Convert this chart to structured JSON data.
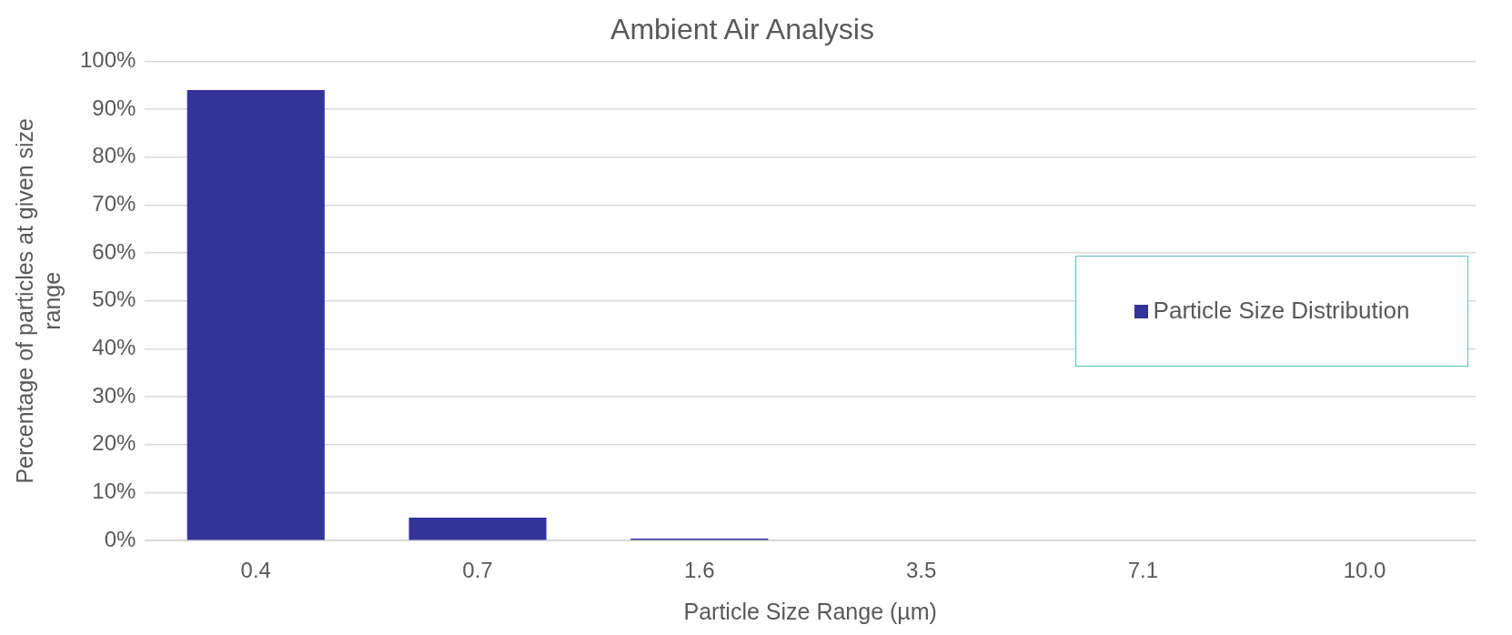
{
  "chart_data": {
    "type": "bar",
    "title": "Ambient Air Analysis",
    "xlabel": "Particle Size Range (µm)",
    "ylabel": "Percentage of particles at given size range",
    "categories": [
      "0.4",
      "0.7",
      "1.6",
      "3.5",
      "7.1",
      "10.0"
    ],
    "series": [
      {
        "name": "Particle Size Distribution",
        "color": "#333399",
        "values": [
          94,
          4.8,
          0.4,
          0,
          0,
          0
        ]
      }
    ],
    "ylim": [
      0,
      100
    ],
    "yticks": [
      {
        "value": 0,
        "label": "0%"
      },
      {
        "value": 10,
        "label": "10%"
      },
      {
        "value": 20,
        "label": "20%"
      },
      {
        "value": 30,
        "label": "30%"
      },
      {
        "value": 40,
        "label": "40%"
      },
      {
        "value": 50,
        "label": "50%"
      },
      {
        "value": 60,
        "label": "60%"
      },
      {
        "value": 70,
        "label": "70%"
      },
      {
        "value": 80,
        "label": "80%"
      },
      {
        "value": 90,
        "label": "90%"
      },
      {
        "value": 100,
        "label": "100%"
      }
    ],
    "grid": "y",
    "legend": "right"
  }
}
